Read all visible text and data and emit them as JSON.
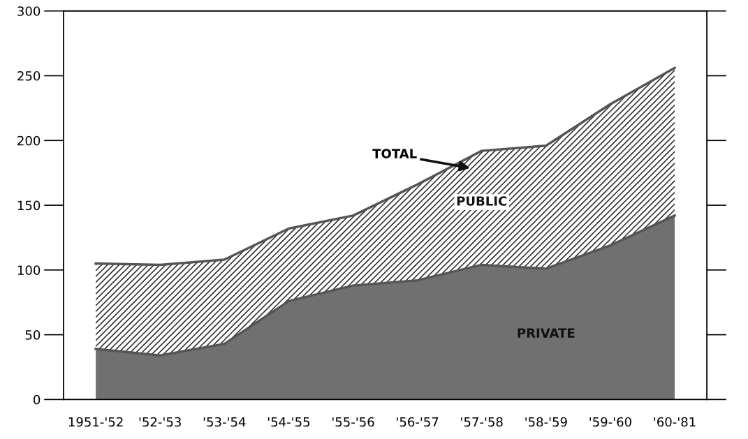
{
  "chart_data": {
    "type": "area",
    "stacked": true,
    "categories": [
      "1951-'52",
      "'52-'53",
      "'53-'54",
      "'54-'55",
      "'55-'56",
      "'56-'57",
      "'57-'58",
      "'58-'59",
      "'59-'60",
      "'60-'81"
    ],
    "series": [
      {
        "name": "PRIVATE",
        "color": "#707070",
        "values": [
          39,
          34,
          43,
          76,
          88,
          92,
          104,
          101,
          119,
          142
        ]
      },
      {
        "name": "PUBLIC",
        "color": "#ffffff",
        "values": [
          66,
          70,
          65,
          56,
          54,
          74,
          88,
          95,
          109,
          114
        ]
      }
    ],
    "ylim": [
      0,
      300
    ],
    "yticks": [
      0,
      50,
      100,
      150,
      200,
      250,
      300
    ],
    "annotations": [
      "TOTAL"
    ],
    "grid": false,
    "legend": false
  }
}
